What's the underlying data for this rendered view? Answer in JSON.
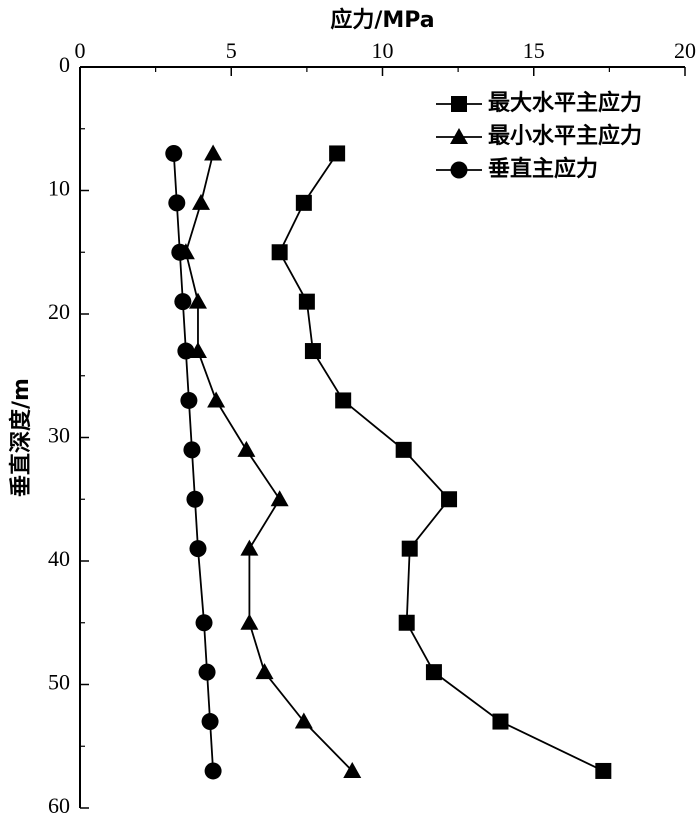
{
  "chart_data": {
    "type": "line",
    "xlabel": "应力/MPa",
    "ylabel": "垂直深度/m",
    "x_axis_position": "top",
    "y_axis_inverted": true,
    "xlim": [
      0,
      20
    ],
    "ylim": [
      0,
      60
    ],
    "xticks": [
      "0",
      "5",
      "10",
      "15",
      "20"
    ],
    "yticks": [
      "0",
      "10",
      "20",
      "30",
      "40",
      "50",
      "60"
    ],
    "legend_position": "top-right",
    "grid": false,
    "series": [
      {
        "name": "最大水平主应力",
        "marker": "square",
        "color": "#000000",
        "x": [
          8.5,
          7.4,
          6.6,
          7.5,
          7.7,
          8.7,
          10.7,
          12.2,
          10.9,
          10.8,
          11.7,
          13.9,
          17.3
        ],
        "y": [
          7,
          11,
          15,
          19,
          23,
          27,
          31,
          35,
          39,
          45,
          49,
          53,
          57
        ]
      },
      {
        "name": "最小水平主应力",
        "marker": "triangle",
        "color": "#000000",
        "x": [
          4.4,
          4.0,
          3.5,
          3.9,
          3.9,
          4.5,
          5.5,
          6.6,
          5.6,
          5.6,
          6.1,
          7.4,
          9.0
        ],
        "y": [
          7,
          11,
          15,
          19,
          23,
          27,
          31,
          35,
          39,
          45,
          49,
          53,
          57
        ]
      },
      {
        "name": "垂直主应力",
        "marker": "circle",
        "color": "#000000",
        "x": [
          3.1,
          3.2,
          3.3,
          3.4,
          3.5,
          3.6,
          3.7,
          3.8,
          3.9,
          4.1,
          4.2,
          4.3,
          4.4
        ],
        "y": [
          7,
          11,
          15,
          19,
          23,
          27,
          31,
          35,
          39,
          45,
          49,
          53,
          57
        ]
      }
    ]
  }
}
